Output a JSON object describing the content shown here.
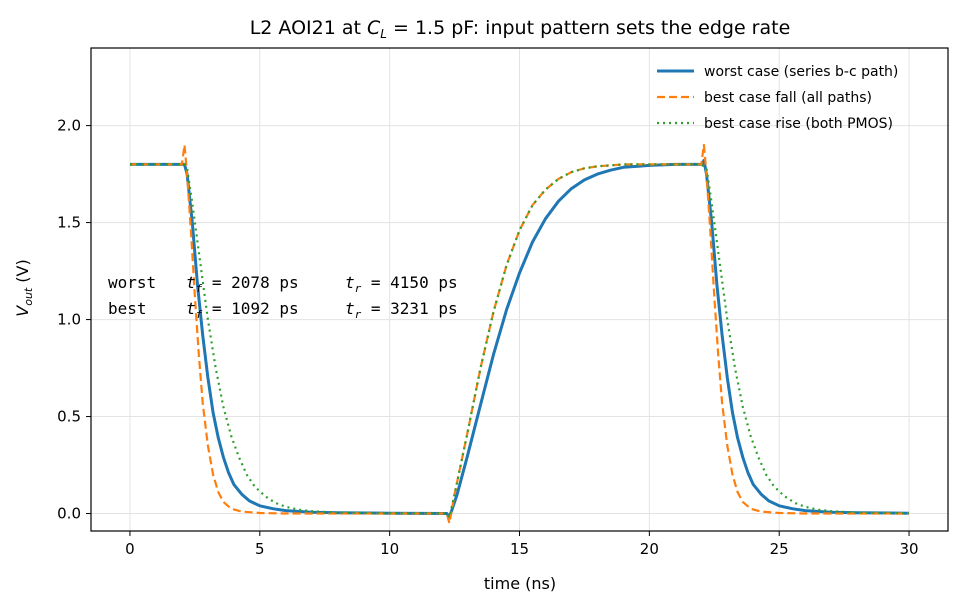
{
  "chart_data": {
    "type": "line",
    "title": {
      "prefix": "L2  AOI21 at ",
      "var": "C",
      "sub": "L",
      "suffix": " = 1.5 pF: input pattern sets the edge rate"
    },
    "xlabel": "time (ns)",
    "ylabel": {
      "var": "V",
      "sub": "out",
      "suffix": " (V)"
    },
    "xlim": [
      -1.5,
      31.5
    ],
    "ylim": [
      -0.09,
      2.4
    ],
    "xticks": [
      0,
      5,
      10,
      15,
      20,
      25,
      30
    ],
    "yticks": [
      0.0,
      0.5,
      1.0,
      1.5,
      2.0
    ],
    "xtick_labels": [
      "0",
      "5",
      "10",
      "15",
      "20",
      "25",
      "30"
    ],
    "ytick_labels": [
      "0.0",
      "0.5",
      "1.0",
      "1.5",
      "2.0"
    ],
    "grid": true,
    "legend_position": "top-right",
    "series": [
      {
        "name": "worst case (series b-c path)",
        "color": "#1f77b4",
        "style": "solid",
        "points": [
          [
            0,
            1.8
          ],
          [
            2.1,
            1.8
          ],
          [
            2.2,
            1.75
          ],
          [
            2.4,
            1.5
          ],
          [
            2.6,
            1.18
          ],
          [
            2.8,
            0.92
          ],
          [
            3.0,
            0.7
          ],
          [
            3.2,
            0.52
          ],
          [
            3.4,
            0.39
          ],
          [
            3.6,
            0.29
          ],
          [
            3.8,
            0.21
          ],
          [
            4.0,
            0.15
          ],
          [
            4.3,
            0.1
          ],
          [
            4.6,
            0.065
          ],
          [
            5.0,
            0.04
          ],
          [
            5.5,
            0.025
          ],
          [
            6.0,
            0.015
          ],
          [
            7.0,
            0.007
          ],
          [
            8.0,
            0.004
          ],
          [
            10.0,
            0.002
          ],
          [
            12.2,
            0.0
          ],
          [
            12.3,
            -0.02
          ],
          [
            12.6,
            0.1
          ],
          [
            13.0,
            0.3
          ],
          [
            13.5,
            0.56
          ],
          [
            14.0,
            0.82
          ],
          [
            14.5,
            1.05
          ],
          [
            15.0,
            1.24
          ],
          [
            15.5,
            1.4
          ],
          [
            16.0,
            1.52
          ],
          [
            16.5,
            1.61
          ],
          [
            17.0,
            1.675
          ],
          [
            17.5,
            1.72
          ],
          [
            18.0,
            1.75
          ],
          [
            18.5,
            1.77
          ],
          [
            19.0,
            1.785
          ],
          [
            20.0,
            1.795
          ],
          [
            21.0,
            1.8
          ],
          [
            22.0,
            1.8
          ],
          [
            22.1,
            1.82
          ],
          [
            22.2,
            1.75
          ],
          [
            22.4,
            1.5
          ],
          [
            22.6,
            1.18
          ],
          [
            22.8,
            0.92
          ],
          [
            23.0,
            0.7
          ],
          [
            23.2,
            0.52
          ],
          [
            23.4,
            0.39
          ],
          [
            23.6,
            0.29
          ],
          [
            23.8,
            0.21
          ],
          [
            24.0,
            0.15
          ],
          [
            24.3,
            0.1
          ],
          [
            24.6,
            0.065
          ],
          [
            25.0,
            0.04
          ],
          [
            25.5,
            0.025
          ],
          [
            26.0,
            0.015
          ],
          [
            27.0,
            0.007
          ],
          [
            28.0,
            0.004
          ],
          [
            30.0,
            0.002
          ]
        ]
      },
      {
        "name": "best case fall (all paths)",
        "color": "#ff7f0e",
        "style": "dashed",
        "points": [
          [
            0,
            1.8
          ],
          [
            2.0,
            1.8
          ],
          [
            2.1,
            1.9
          ],
          [
            2.2,
            1.75
          ],
          [
            2.35,
            1.45
          ],
          [
            2.5,
            1.12
          ],
          [
            2.65,
            0.82
          ],
          [
            2.8,
            0.57
          ],
          [
            3.0,
            0.35
          ],
          [
            3.2,
            0.2
          ],
          [
            3.4,
            0.11
          ],
          [
            3.6,
            0.06
          ],
          [
            3.9,
            0.025
          ],
          [
            4.3,
            0.01
          ],
          [
            5.0,
            0.003
          ],
          [
            6.0,
            0.0
          ],
          [
            12.2,
            0.0
          ],
          [
            12.3,
            -0.05
          ],
          [
            12.5,
            0.1
          ],
          [
            13.0,
            0.42
          ],
          [
            13.5,
            0.75
          ],
          [
            14.0,
            1.04
          ],
          [
            14.5,
            1.28
          ],
          [
            15.0,
            1.46
          ],
          [
            15.5,
            1.59
          ],
          [
            16.0,
            1.67
          ],
          [
            16.5,
            1.725
          ],
          [
            17.0,
            1.76
          ],
          [
            17.5,
            1.78
          ],
          [
            18.0,
            1.79
          ],
          [
            19.0,
            1.8
          ],
          [
            22.0,
            1.8
          ],
          [
            22.1,
            1.9
          ],
          [
            22.2,
            1.75
          ],
          [
            22.35,
            1.45
          ],
          [
            22.5,
            1.12
          ],
          [
            22.65,
            0.82
          ],
          [
            22.8,
            0.57
          ],
          [
            23.0,
            0.35
          ],
          [
            23.2,
            0.2
          ],
          [
            23.4,
            0.11
          ],
          [
            23.6,
            0.06
          ],
          [
            23.9,
            0.025
          ],
          [
            24.3,
            0.01
          ],
          [
            25.0,
            0.003
          ],
          [
            26.0,
            0.0
          ],
          [
            30.0,
            0.0
          ]
        ]
      },
      {
        "name": "best case rise (both PMOS)",
        "color": "#2ca02c",
        "style": "dotted",
        "points": [
          [
            0,
            1.8
          ],
          [
            2.1,
            1.8
          ],
          [
            2.2,
            1.78
          ],
          [
            2.4,
            1.6
          ],
          [
            2.7,
            1.3
          ],
          [
            3.0,
            1.0
          ],
          [
            3.3,
            0.75
          ],
          [
            3.6,
            0.55
          ],
          [
            3.9,
            0.4
          ],
          [
            4.2,
            0.29
          ],
          [
            4.5,
            0.2
          ],
          [
            4.8,
            0.14
          ],
          [
            5.2,
            0.09
          ],
          [
            5.6,
            0.055
          ],
          [
            6.0,
            0.035
          ],
          [
            6.5,
            0.02
          ],
          [
            7.0,
            0.012
          ],
          [
            8.0,
            0.005
          ],
          [
            10.0,
            0.002
          ],
          [
            12.2,
            0.0
          ],
          [
            12.3,
            -0.02
          ],
          [
            12.5,
            0.1
          ],
          [
            13.0,
            0.42
          ],
          [
            13.5,
            0.75
          ],
          [
            14.0,
            1.04
          ],
          [
            14.5,
            1.28
          ],
          [
            15.0,
            1.46
          ],
          [
            15.5,
            1.59
          ],
          [
            16.0,
            1.67
          ],
          [
            16.5,
            1.725
          ],
          [
            17.0,
            1.76
          ],
          [
            17.5,
            1.78
          ],
          [
            18.0,
            1.79
          ],
          [
            19.0,
            1.8
          ],
          [
            22.0,
            1.8
          ],
          [
            22.2,
            1.78
          ],
          [
            22.4,
            1.6
          ],
          [
            22.7,
            1.3
          ],
          [
            23.0,
            1.0
          ],
          [
            23.3,
            0.75
          ],
          [
            23.6,
            0.55
          ],
          [
            23.9,
            0.4
          ],
          [
            24.2,
            0.29
          ],
          [
            24.5,
            0.2
          ],
          [
            24.8,
            0.14
          ],
          [
            25.2,
            0.09
          ],
          [
            25.6,
            0.055
          ],
          [
            26.0,
            0.035
          ],
          [
            26.5,
            0.02
          ],
          [
            27.0,
            0.012
          ],
          [
            28.0,
            0.005
          ],
          [
            30.0,
            0.002
          ]
        ]
      }
    ],
    "annotations": [
      {
        "label": "worst",
        "tf_var": "t",
        "tf_sub": "f",
        "tf_text": " = 2078 ps",
        "tr_var": "t",
        "tr_sub": "r",
        "tr_text": " = 4150 ps",
        "tf_ps": 2078,
        "tr_ps": 4150
      },
      {
        "label": "best",
        "tf_var": "t",
        "tf_sub": "f",
        "tf_text": " = 1092 ps",
        "tr_var": "t",
        "tr_sub": "r",
        "tr_text": " = 3231 ps",
        "tf_ps": 1092,
        "tr_ps": 3231
      }
    ]
  }
}
